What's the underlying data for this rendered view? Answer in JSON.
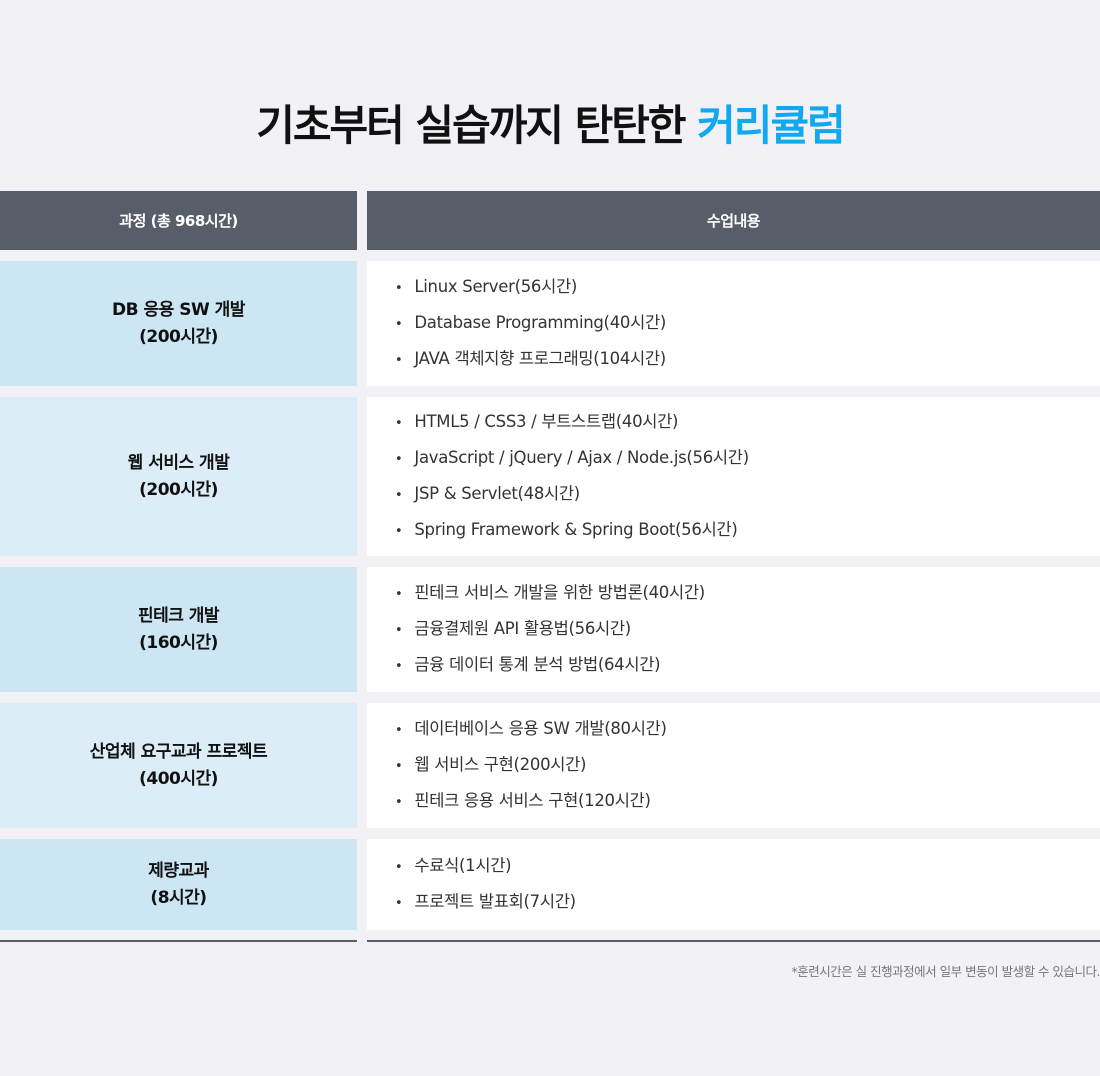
{
  "title": {
    "main": "기초부터 실습까지 탄탄한 ",
    "highlight": "커리큘럼",
    "highlight_color": "#12a8f0"
  },
  "table": {
    "headers": [
      "과정 (총 968시간)",
      "수업내용"
    ],
    "rows": [
      {
        "course": "DB 응용 SW 개발",
        "hours": "(200시간)",
        "bg": "#cce6f4",
        "items": [
          "Linux Server(56시간)",
          "Database Programming(40시간)",
          "JAVA 객체지향 프로그래밍(104시간)"
        ]
      },
      {
        "course": "웹 서비스 개발",
        "hours": "(200시간)",
        "bg": "#dcedf7",
        "items": [
          "HTML5 / CSS3 / 부트스트랩(40시간)",
          "JavaScript / jQuery / Ajax / Node.js(56시간)",
          "JSP & Servlet(48시간)",
          "Spring Framework & Spring Boot(56시간)"
        ]
      },
      {
        "course": "핀테크 개발",
        "hours": "(160시간)",
        "bg": "#cce6f4",
        "items": [
          "핀테크 서비스 개발을 위한 방법론(40시간)",
          "금융결제원 API 활용법(56시간)",
          "금융 데이터 통계 분석 방법(64시간)"
        ]
      },
      {
        "course": "산업체 요구교과 프로젝트",
        "hours": "(400시간)",
        "bg": "#dcedf7",
        "items": [
          "데이터베이스 응용 SW 개발(80시간)",
          "웹 서비스 구현(200시간)",
          "핀테크 응용 서비스 구현(120시간)"
        ]
      },
      {
        "course": "제량교과",
        "hours": "(8시간)",
        "bg": "#cce6f4",
        "items": [
          "수료식(1시간)",
          "프로젝트 발표회(7시간)"
        ]
      }
    ]
  },
  "note": "*훈련시간은 실 진행과정에서 일부 변동이 발생할 수 있습니다."
}
